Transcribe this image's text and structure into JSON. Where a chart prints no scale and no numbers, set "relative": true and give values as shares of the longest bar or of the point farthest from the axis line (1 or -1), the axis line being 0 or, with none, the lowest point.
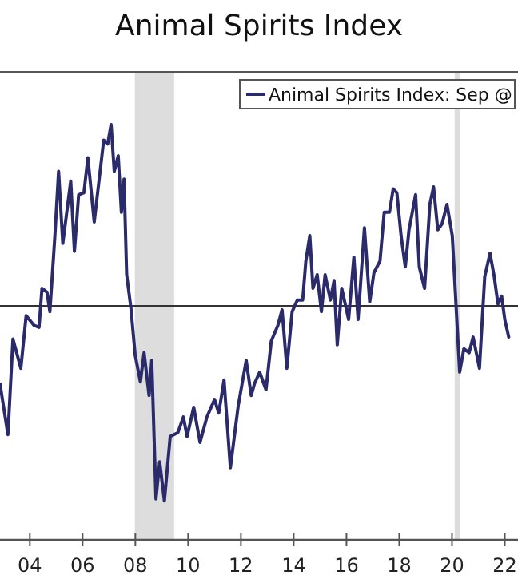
{
  "chart_data": {
    "type": "line",
    "title": "Animal Spirits Index",
    "relative": true,
    "xlim": [
      2002.87,
      2022.5
    ],
    "xticks": [
      {
        "value": 2004,
        "label": "04"
      },
      {
        "value": 2006,
        "label": "06"
      },
      {
        "value": 2008,
        "label": "08"
      },
      {
        "value": 2010,
        "label": "10"
      },
      {
        "value": 2012,
        "label": "12"
      },
      {
        "value": 2014,
        "label": "14"
      },
      {
        "value": 2016,
        "label": "16"
      },
      {
        "value": 2018,
        "label": "18"
      },
      {
        "value": 2020,
        "label": "20"
      },
      {
        "value": 2022,
        "label": "22"
      }
    ],
    "x": [
      2002.87,
      2003.17,
      2003.36,
      2003.66,
      2003.86,
      2004.16,
      2004.35,
      2004.46,
      2004.65,
      2004.76,
      2004.95,
      2005.09,
      2005.25,
      2005.55,
      2005.69,
      2005.85,
      2006.05,
      2006.2,
      2006.44,
      2006.8,
      2006.95,
      2007.08,
      2007.2,
      2007.35,
      2007.47,
      2007.57,
      2007.67,
      2007.83,
      2007.99,
      2008.19,
      2008.33,
      2008.52,
      2008.62,
      2008.78,
      2008.92,
      2009.1,
      2009.32,
      2009.61,
      2009.82,
      2009.96,
      2010.21,
      2010.45,
      2010.71,
      2011.0,
      2011.16,
      2011.36,
      2011.6,
      2011.9,
      2012.2,
      2012.39,
      2012.51,
      2012.71,
      2012.95,
      2013.15,
      2013.4,
      2013.56,
      2013.74,
      2013.94,
      2014.14,
      2014.34,
      2014.46,
      2014.61,
      2014.73,
      2014.89,
      2015.05,
      2015.19,
      2015.39,
      2015.53,
      2015.65,
      2015.82,
      2016.08,
      2016.28,
      2016.44,
      2016.68,
      2016.88,
      2017.04,
      2017.27,
      2017.43,
      2017.63,
      2017.77,
      2017.91,
      2018.07,
      2018.23,
      2018.37,
      2018.62,
      2018.76,
      2018.96,
      2019.16,
      2019.3,
      2019.46,
      2019.62,
      2019.81,
      2020.01,
      2020.15,
      2020.29,
      2020.45,
      2020.65,
      2020.8,
      2021.04,
      2021.24,
      2021.44,
      2021.6,
      2021.74,
      2021.88,
      2022.0,
      2022.15
    ],
    "series": [
      {
        "name": "Animal Spirits Index: Sep @",
        "color": "#2b2a6b",
        "values": [
          -0.4,
          -0.66,
          -0.17,
          -0.32,
          -0.05,
          -0.1,
          -0.11,
          0.09,
          0.07,
          -0.03,
          0.36,
          0.69,
          0.32,
          0.64,
          0.28,
          0.57,
          0.58,
          0.76,
          0.43,
          0.85,
          0.83,
          0.93,
          0.69,
          0.77,
          0.48,
          0.65,
          0.16,
          -0.01,
          -0.25,
          -0.39,
          -0.24,
          -0.46,
          -0.28,
          -0.99,
          -0.8,
          -1,
          -0.67,
          -0.65,
          -0.57,
          -0.67,
          -0.52,
          -0.7,
          -0.57,
          -0.48,
          -0.55,
          -0.38,
          -0.83,
          -0.51,
          -0.28,
          -0.46,
          -0.4,
          -0.34,
          -0.43,
          -0.18,
          -0.1,
          -0.02,
          -0.32,
          -0.03,
          0.03,
          0.03,
          0.23,
          0.36,
          0.09,
          0.16,
          -0.03,
          0.16,
          0.03,
          0.13,
          -0.2,
          0.09,
          -0.07,
          0.25,
          -0.07,
          0.4,
          0.02,
          0.17,
          0.23,
          0.48,
          0.48,
          0.6,
          0.58,
          0.36,
          0.2,
          0.39,
          0.57,
          0.2,
          0.09,
          0.52,
          0.61,
          0.39,
          0.42,
          0.52,
          0.36,
          0.01,
          -0.34,
          -0.22,
          -0.24,
          -0.16,
          -0.32,
          0.15,
          0.27,
          0.15,
          0.01,
          0.05,
          -0.07,
          -0.16
        ]
      }
    ],
    "bands": [
      {
        "axis": "x",
        "from": 2007.98,
        "to": 2009.47,
        "color": "#dddddd"
      },
      {
        "axis": "x",
        "from": 2020.1,
        "to": 2020.3,
        "color": "#dddddd"
      }
    ],
    "ref_lines": [
      {
        "axis": "y",
        "value": 0,
        "color": "#333333"
      }
    ],
    "legend": "top right",
    "grid": false
  }
}
